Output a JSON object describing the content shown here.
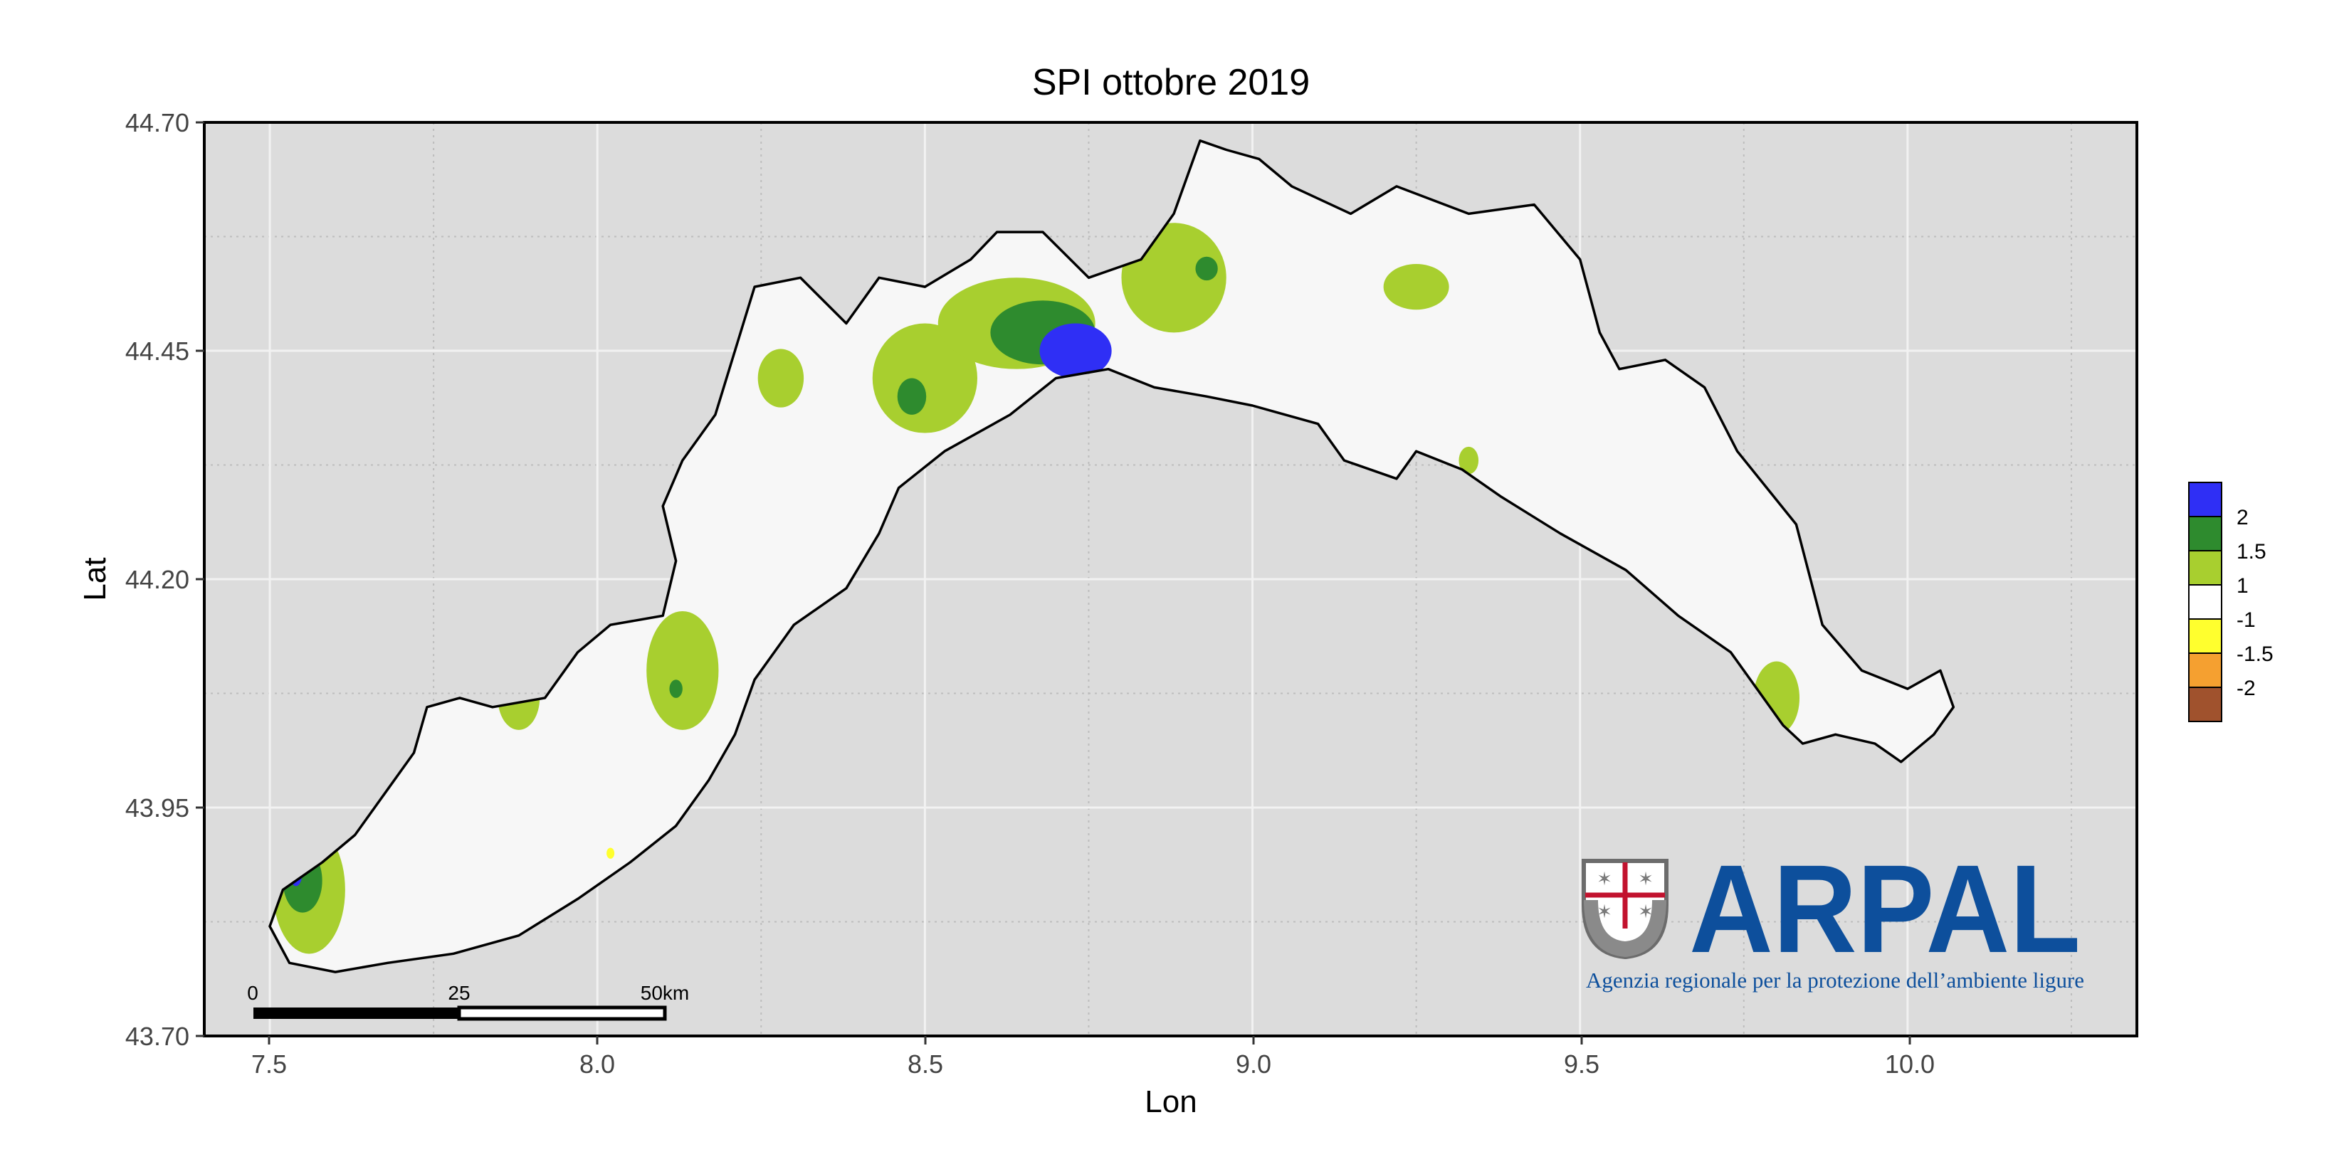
{
  "title": "SPI ottobre 2019",
  "xlabel": "Lon",
  "ylabel": "Lat",
  "x_ticks": [
    "7.5",
    "8.0",
    "8.5",
    "9.0",
    "9.5",
    "10.0"
  ],
  "y_ticks": [
    "44.70",
    "44.45",
    "44.20",
    "43.95",
    "43.70"
  ],
  "chart_data": {
    "type": "heatmap",
    "title": "SPI ottobre 2019",
    "xlabel": "Lon",
    "ylabel": "Lat",
    "xlim": [
      7.4,
      10.35
    ],
    "ylim": [
      43.7,
      44.7
    ],
    "grid": true,
    "legend_position": "right",
    "x_ticks": [
      7.5,
      8.0,
      8.5,
      9.0,
      9.5,
      10.0
    ],
    "y_ticks": [
      43.7,
      43.95,
      44.2,
      44.45,
      44.7
    ],
    "legend": [
      {
        "label": "2",
        "color": "#2f2ff5"
      },
      {
        "label": "1.5",
        "color": "#2e8b2e"
      },
      {
        "label": "1",
        "color": "#a8cf2f"
      },
      {
        "label": "-1",
        "color": "#ffffff"
      },
      {
        "label": "-1.5",
        "color": "#ffff2e"
      },
      {
        "label": "-2",
        "color": "#f5a030"
      },
      {
        "label": "",
        "color": "#a0522d"
      }
    ],
    "legend_labels": [
      "2",
      "1.5",
      "1",
      "-1",
      "-1.5",
      "-2"
    ],
    "region_fill": "#f7f7f7",
    "panel_background": "#dcdcdc",
    "outline": [
      [
        7.53,
        43.78
      ],
      [
        7.5,
        43.82
      ],
      [
        7.52,
        43.86
      ],
      [
        7.58,
        43.89
      ],
      [
        7.63,
        43.92
      ],
      [
        7.68,
        43.97
      ],
      [
        7.72,
        44.01
      ],
      [
        7.74,
        44.06
      ],
      [
        7.79,
        44.07
      ],
      [
        7.84,
        44.06
      ],
      [
        7.92,
        44.07
      ],
      [
        7.97,
        44.12
      ],
      [
        8.02,
        44.15
      ],
      [
        8.1,
        44.16
      ],
      [
        8.12,
        44.22
      ],
      [
        8.1,
        44.28
      ],
      [
        8.13,
        44.33
      ],
      [
        8.18,
        44.38
      ],
      [
        8.21,
        44.45
      ],
      [
        8.24,
        44.52
      ],
      [
        8.31,
        44.53
      ],
      [
        8.38,
        44.48
      ],
      [
        8.43,
        44.53
      ],
      [
        8.5,
        44.52
      ],
      [
        8.57,
        44.55
      ],
      [
        8.61,
        44.58
      ],
      [
        8.68,
        44.58
      ],
      [
        8.75,
        44.53
      ],
      [
        8.83,
        44.55
      ],
      [
        8.88,
        44.6
      ],
      [
        8.92,
        44.68
      ],
      [
        8.96,
        44.67
      ],
      [
        9.01,
        44.66
      ],
      [
        9.06,
        44.63
      ],
      [
        9.15,
        44.6
      ],
      [
        9.22,
        44.63
      ],
      [
        9.33,
        44.6
      ],
      [
        9.43,
        44.61
      ],
      [
        9.5,
        44.55
      ],
      [
        9.53,
        44.47
      ],
      [
        9.56,
        44.43
      ],
      [
        9.63,
        44.44
      ],
      [
        9.69,
        44.41
      ],
      [
        9.74,
        44.34
      ],
      [
        9.83,
        44.26
      ],
      [
        9.87,
        44.15
      ],
      [
        9.93,
        44.1
      ],
      [
        10.0,
        44.08
      ],
      [
        10.05,
        44.1
      ],
      [
        10.07,
        44.06
      ],
      [
        10.04,
        44.03
      ],
      [
        9.99,
        44.0
      ],
      [
        9.95,
        44.02
      ],
      [
        9.89,
        44.03
      ],
      [
        9.84,
        44.02
      ],
      [
        9.81,
        44.04
      ],
      [
        9.78,
        44.07
      ],
      [
        9.73,
        44.12
      ],
      [
        9.65,
        44.16
      ],
      [
        9.57,
        44.21
      ],
      [
        9.47,
        44.25
      ],
      [
        9.38,
        44.29
      ],
      [
        9.32,
        44.32
      ],
      [
        9.25,
        44.34
      ],
      [
        9.22,
        44.31
      ],
      [
        9.14,
        44.33
      ],
      [
        9.1,
        44.37
      ],
      [
        9.0,
        44.39
      ],
      [
        8.93,
        44.4
      ],
      [
        8.85,
        44.41
      ],
      [
        8.78,
        44.43
      ],
      [
        8.7,
        44.42
      ],
      [
        8.63,
        44.38
      ],
      [
        8.53,
        44.34
      ],
      [
        8.46,
        44.3
      ],
      [
        8.43,
        44.25
      ],
      [
        8.38,
        44.19
      ],
      [
        8.3,
        44.15
      ],
      [
        8.24,
        44.09
      ],
      [
        8.21,
        44.03
      ],
      [
        8.17,
        43.98
      ],
      [
        8.12,
        43.93
      ],
      [
        8.05,
        43.89
      ],
      [
        7.97,
        43.85
      ],
      [
        7.88,
        43.81
      ],
      [
        7.78,
        43.79
      ],
      [
        7.68,
        43.78
      ],
      [
        7.6,
        43.77
      ],
      [
        7.53,
        43.78
      ]
    ],
    "patches": [
      {
        "class": "1",
        "value": 1.0,
        "cx": 8.5,
        "cy": 44.42,
        "rx": 0.08,
        "ry": 0.06
      },
      {
        "class": "1",
        "value": 1.0,
        "cx": 8.64,
        "cy": 44.48,
        "rx": 0.12,
        "ry": 0.05
      },
      {
        "class": "1",
        "value": 1.0,
        "cx": 8.88,
        "cy": 44.53,
        "rx": 0.08,
        "ry": 0.06
      },
      {
        "class": "1",
        "value": 1.0,
        "cx": 8.28,
        "cy": 44.42,
        "rx": 0.035,
        "ry": 0.032
      },
      {
        "class": "1",
        "value": 1.0,
        "cx": 9.25,
        "cy": 44.52,
        "rx": 0.05,
        "ry": 0.025
      },
      {
        "class": "1",
        "value": 1.0,
        "cx": 8.13,
        "cy": 44.1,
        "rx": 0.055,
        "ry": 0.065
      },
      {
        "class": "1",
        "value": 1.0,
        "cx": 7.88,
        "cy": 44.07,
        "rx": 0.032,
        "ry": 0.035
      },
      {
        "class": "1",
        "value": 1.0,
        "cx": 7.56,
        "cy": 43.86,
        "rx": 0.055,
        "ry": 0.07
      },
      {
        "class": "1",
        "value": 1.0,
        "cx": 9.8,
        "cy": 44.07,
        "rx": 0.035,
        "ry": 0.04
      },
      {
        "class": "1",
        "value": 1.0,
        "cx": 9.33,
        "cy": 44.33,
        "rx": 0.015,
        "ry": 0.015
      },
      {
        "class": "1.5",
        "value": 1.5,
        "cx": 8.68,
        "cy": 44.47,
        "rx": 0.08,
        "ry": 0.035
      },
      {
        "class": "1.5",
        "value": 1.5,
        "cx": 8.48,
        "cy": 44.4,
        "rx": 0.022,
        "ry": 0.02
      },
      {
        "class": "1.5",
        "value": 1.5,
        "cx": 8.93,
        "cy": 44.54,
        "rx": 0.017,
        "ry": 0.013
      },
      {
        "class": "1.5",
        "value": 1.5,
        "cx": 7.55,
        "cy": 43.87,
        "rx": 0.03,
        "ry": 0.035
      },
      {
        "class": "1.5",
        "value": 1.5,
        "cx": 8.12,
        "cy": 44.08,
        "rx": 0.01,
        "ry": 0.01
      },
      {
        "class": "2",
        "value": 2.0,
        "cx": 8.73,
        "cy": 44.45,
        "rx": 0.055,
        "ry": 0.03
      },
      {
        "class": "2",
        "value": 2.0,
        "cx": 7.54,
        "cy": 43.88,
        "rx": 0.01,
        "ry": 0.016
      },
      {
        "class": "-1.5",
        "value": -1.5,
        "cx": 8.02,
        "cy": 43.9,
        "rx": 0.006,
        "ry": 0.006
      }
    ]
  },
  "scalebar": {
    "labels": [
      "0",
      "25",
      "50km"
    ]
  },
  "logo": {
    "name": "ARPAL",
    "subtitle": "Agenzia regionale per la protezione dell’ambiente ligure",
    "color": "#0d4f9c"
  }
}
